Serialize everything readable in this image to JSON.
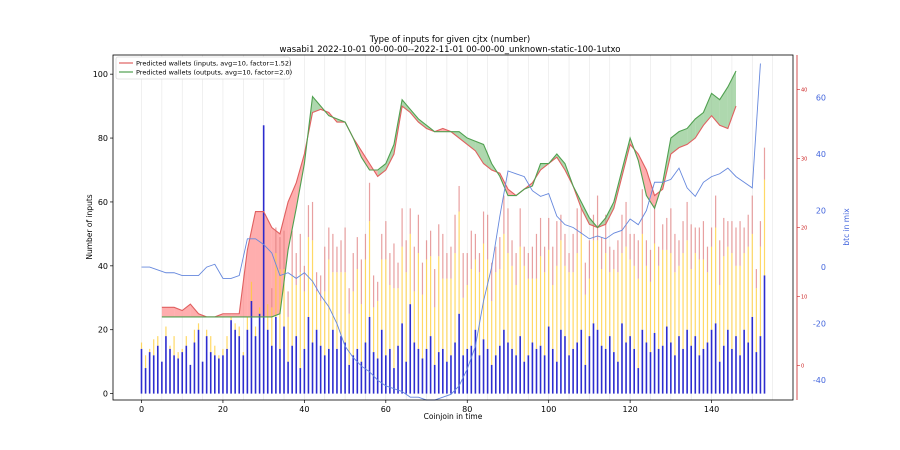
{
  "chart_data": {
    "type": "bar",
    "title": "Type of inputs for given cjtx (number)",
    "subtitle": "wasabi1 2022-10-01 00-00-00--2022-11-01 00-00-00_unknown-static-100-1utxo",
    "xlabel": "Coinjoin in time",
    "ylabel": "Number of inputs",
    "y2label": "btc in mix",
    "xlim": [
      -7,
      160
    ],
    "ylim": [
      -2,
      106
    ],
    "y2lim": [
      -47,
      75
    ],
    "y3lim": [
      -5,
      45
    ],
    "x_ticks": [
      0,
      20,
      40,
      60,
      80,
      100,
      120,
      140
    ],
    "y_ticks": [
      0,
      20,
      40,
      60,
      80,
      100
    ],
    "y2_ticks": [
      -40,
      -20,
      0,
      20,
      40,
      60
    ],
    "y3_ticks": [
      0,
      10,
      20,
      30,
      40
    ],
    "grid": "vertical",
    "legend_position": "top-left",
    "legend": [
      {
        "label": "Predicted wallets (inputs, avg=10, factor=1.52)",
        "color": "#e06060"
      },
      {
        "label": "Predicted wallets (outputs, avg=10, factor=2.0)",
        "color": "#50a050"
      }
    ],
    "series": [
      {
        "name": "Predicted wallets (inputs, avg=10, factor=1.52)",
        "color": "#e06060",
        "x": [
          5,
          8,
          10,
          12,
          14,
          16,
          18,
          20,
          22,
          24,
          26,
          28,
          30,
          32,
          34,
          36,
          38,
          40,
          42,
          44,
          46,
          48,
          50,
          52,
          54,
          56,
          58,
          60,
          62,
          64,
          66,
          68,
          70,
          72,
          74,
          76,
          78,
          80,
          82,
          84,
          86,
          88,
          90,
          92,
          94,
          96,
          98,
          100,
          102,
          104,
          106,
          108,
          110,
          112,
          114,
          116,
          118,
          120,
          122,
          124,
          126,
          128,
          130,
          132,
          134,
          136,
          138,
          140,
          142,
          144,
          146
        ],
        "y": [
          27,
          27,
          26,
          28,
          25,
          24,
          24,
          25,
          25,
          25,
          45,
          57,
          57,
          52,
          50,
          60,
          66,
          75,
          88,
          89,
          88,
          85,
          85,
          80,
          76,
          72,
          68,
          70,
          75,
          90,
          88,
          85,
          83,
          82,
          83,
          82,
          80,
          78,
          76,
          72,
          70,
          69,
          64,
          62,
          64,
          66,
          70,
          72,
          74,
          70,
          65,
          58,
          53,
          52,
          53,
          58,
          68,
          78,
          75,
          70,
          62,
          64,
          75,
          77,
          78,
          80,
          84,
          87,
          84,
          83,
          90
        ]
      },
      {
        "name": "Predicted wallets (outputs, avg=10, factor=2.0)",
        "color": "#50a050",
        "x": [
          5,
          8,
          10,
          12,
          14,
          16,
          18,
          20,
          22,
          24,
          26,
          28,
          30,
          32,
          34,
          36,
          38,
          40,
          42,
          44,
          46,
          48,
          50,
          52,
          54,
          56,
          58,
          60,
          62,
          64,
          66,
          68,
          70,
          72,
          74,
          76,
          78,
          80,
          82,
          84,
          86,
          88,
          90,
          92,
          94,
          96,
          98,
          100,
          102,
          104,
          106,
          108,
          110,
          112,
          114,
          116,
          118,
          120,
          122,
          124,
          126,
          128,
          130,
          132,
          134,
          136,
          138,
          140,
          142,
          144,
          146
        ],
        "y": [
          24,
          24,
          24,
          24,
          24,
          24,
          24,
          24,
          24,
          24,
          24,
          24,
          24,
          24,
          25,
          45,
          58,
          72,
          93,
          90,
          87,
          86,
          85,
          80,
          74,
          70,
          70,
          72,
          78,
          92,
          89,
          86,
          84,
          82,
          82,
          82,
          82,
          80,
          79,
          78,
          72,
          68,
          62,
          62,
          64,
          65,
          72,
          72,
          75,
          72,
          65,
          60,
          55,
          52,
          55,
          60,
          70,
          80,
          73,
          62,
          58,
          66,
          80,
          82,
          83,
          86,
          88,
          94,
          92,
          96,
          101
        ]
      },
      {
        "name": "",
        "color": "#6688dd",
        "axis": "y2",
        "x": [
          0,
          2,
          4,
          6,
          8,
          10,
          12,
          14,
          16,
          18,
          20,
          22,
          24,
          26,
          28,
          30,
          32,
          34,
          36,
          38,
          40,
          42,
          44,
          46,
          48,
          50,
          52,
          54,
          56,
          58,
          60,
          62,
          64,
          66,
          68,
          70,
          72,
          74,
          76,
          78,
          80,
          82,
          84,
          86,
          88,
          90,
          92,
          94,
          96,
          98,
          100,
          102,
          104,
          106,
          108,
          110,
          112,
          114,
          116,
          118,
          120,
          122,
          124,
          126,
          128,
          130,
          132,
          134,
          136,
          138,
          140,
          142,
          144,
          146,
          148,
          150,
          152
        ],
        "y": [
          0,
          0,
          -1,
          -2,
          -2,
          -3,
          -3,
          -3,
          0,
          1,
          -4,
          -4,
          -3,
          10,
          10,
          8,
          5,
          -3,
          -2,
          -4,
          -2,
          -5,
          -10,
          -14,
          -20,
          -28,
          -32,
          -35,
          -37,
          -40,
          -42,
          -43,
          -44,
          -46,
          -46,
          -47,
          -47,
          -46,
          -45,
          -42,
          -36,
          -28,
          -12,
          0,
          18,
          34,
          33,
          32,
          27,
          25,
          26,
          18,
          15,
          14,
          12,
          10,
          11,
          10,
          12,
          13,
          17,
          15,
          20,
          30,
          30,
          31,
          35,
          28,
          25,
          30,
          32,
          33,
          35,
          32,
          30,
          28,
          72
        ]
      }
    ],
    "bar_series": [
      {
        "name": "",
        "color": "#2222cc",
        "values": [
          14,
          8,
          13,
          12,
          15,
          10,
          18,
          14,
          12,
          11,
          13,
          15,
          9,
          16,
          20,
          10,
          18,
          13,
          12,
          11,
          12,
          14,
          23,
          20,
          18,
          12,
          20,
          29,
          18,
          25,
          84,
          20,
          15,
          24,
          14,
          21,
          10,
          15,
          18,
          8,
          14,
          24,
          16,
          20,
          15,
          12,
          14,
          20,
          14,
          18,
          16,
          9,
          12,
          14,
          10,
          16,
          24,
          13,
          11,
          20,
          12,
          14,
          8,
          15,
          22,
          10,
          28,
          16,
          14,
          11,
          14,
          18,
          9,
          13,
          14,
          10,
          12,
          16,
          25,
          12,
          14,
          15,
          20,
          12,
          17,
          14,
          9,
          12,
          15,
          20,
          16,
          14,
          12,
          18,
          10,
          12,
          16,
          14,
          15,
          12,
          21,
          14,
          10,
          20,
          18,
          12,
          14,
          16,
          20,
          9,
          18,
          22,
          20,
          15,
          14,
          18,
          13,
          10,
          22,
          16,
          18,
          14,
          8,
          20,
          16,
          13,
          19,
          14,
          15,
          21,
          16,
          12,
          18,
          14,
          20,
          15,
          18,
          12,
          14,
          16,
          20,
          22,
          10,
          15,
          20,
          14,
          18,
          12,
          20,
          16,
          24,
          13,
          18,
          37
        ]
      },
      {
        "name": "",
        "color": "#ffcc33",
        "values": [
          2,
          4,
          1,
          5,
          3,
          0,
          3,
          1,
          6,
          2,
          1,
          3,
          0,
          4,
          2,
          0,
          2,
          5,
          3,
          1,
          2,
          4,
          1,
          2,
          3,
          1,
          4,
          6,
          3,
          2,
          0,
          8,
          12,
          20,
          25,
          18,
          14,
          22,
          16,
          30,
          18,
          25,
          32,
          12,
          14,
          20,
          28,
          18,
          24,
          20,
          22,
          16,
          20,
          25,
          18,
          26,
          30,
          14,
          18,
          22,
          30,
          20,
          25,
          18,
          24,
          28,
          22,
          16,
          30,
          20,
          28,
          25,
          18,
          30,
          22,
          26,
          24,
          28,
          32,
          18,
          20,
          24,
          22,
          26,
          30,
          28,
          20,
          26,
          24,
          30,
          28,
          26,
          22,
          28,
          30,
          24,
          20,
          22,
          28,
          26,
          24,
          20,
          30,
          28,
          22,
          26,
          24,
          28,
          30,
          22,
          18,
          26,
          28,
          24,
          30,
          20,
          26,
          28,
          22,
          30,
          24,
          26,
          28,
          30,
          24,
          22,
          28,
          26,
          30,
          24,
          28,
          26,
          22,
          30,
          28,
          24,
          26,
          30,
          28,
          22,
          26,
          30,
          24,
          28,
          26,
          30,
          22,
          28,
          24,
          30,
          26,
          20,
          28,
          30
        ]
      },
      {
        "name": "",
        "color": "#e08080",
        "values": [
          0,
          0,
          0,
          0,
          0,
          0,
          0,
          0,
          0,
          0,
          0,
          0,
          0,
          0,
          0,
          0,
          0,
          0,
          0,
          0,
          0,
          0,
          0,
          0,
          0,
          0,
          0,
          0,
          0,
          0,
          0,
          0,
          6,
          8,
          10,
          12,
          8,
          14,
          10,
          12,
          8,
          10,
          12,
          6,
          8,
          14,
          10,
          12,
          8,
          10,
          14,
          8,
          12,
          10,
          14,
          8,
          12,
          10,
          6,
          8,
          12,
          10,
          14,
          8,
          12,
          10,
          8,
          14,
          12,
          10,
          6,
          8,
          12,
          10,
          14,
          8,
          10,
          12,
          8,
          14,
          10,
          12,
          8,
          6,
          10,
          14,
          12,
          8,
          10,
          12,
          14,
          8,
          10,
          12,
          6,
          8,
          10,
          14,
          12,
          8,
          10,
          12,
          14,
          8,
          10,
          6,
          12,
          14,
          8,
          10,
          12,
          8,
          14,
          10,
          12,
          8,
          6,
          10,
          12,
          14,
          8,
          10,
          12,
          14,
          8,
          10,
          12,
          6,
          8,
          10,
          14,
          12,
          8,
          10,
          12,
          14,
          8,
          10,
          12,
          8,
          6,
          10,
          14,
          12,
          8,
          10,
          12,
          14,
          8,
          10,
          12,
          6,
          8,
          10
        ]
      }
    ]
  }
}
